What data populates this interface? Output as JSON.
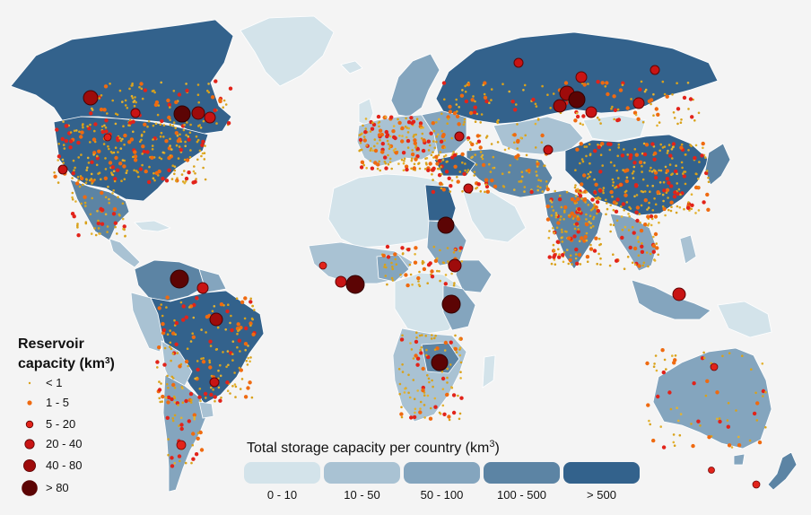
{
  "reservoir_legend": {
    "title_line1": "Reservoir",
    "title_line2_prefix": "capacity (km",
    "title_sup": "3",
    "title_suffix": ")",
    "items": [
      {
        "label": "< 1",
        "color": "#d9a21b"
      },
      {
        "label": "1 - 5",
        "color": "#ef6a10"
      },
      {
        "label": "5 - 20",
        "color": "#e2231a"
      },
      {
        "label": "20 - 40",
        "color": "#c81414"
      },
      {
        "label": "40 - 80",
        "color": "#9e0b0b"
      },
      {
        "label": "> 80",
        "color": "#5c0404"
      }
    ]
  },
  "country_legend": {
    "title_prefix": "Total storage capacity per country (km",
    "title_sup": "3",
    "title_suffix": ")",
    "classes": [
      {
        "label": "0 - 10",
        "color": "#d3e3ea"
      },
      {
        "label": "10 - 50",
        "color": "#a9c2d3"
      },
      {
        "label": "50 - 100",
        "color": "#84a5be"
      },
      {
        "label": "100 - 500",
        "color": "#5c84a4"
      },
      {
        "label": "> 500",
        "color": "#33628c"
      }
    ]
  }
}
